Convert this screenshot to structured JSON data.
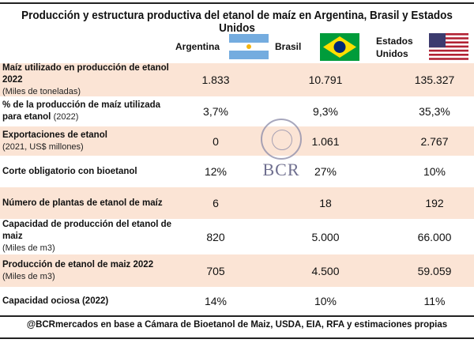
{
  "title": "Producción y estructura productiva del etanol de maíz en Argentina, Brasil y Estados Unidos",
  "columns": [
    "Argentina",
    "Brasil",
    "Estados Unidos"
  ],
  "watermark": "BCR",
  "rows": [
    {
      "label": "Maíz utilizado en producción de etanol 2022",
      "sub": "(Miles de toneladas)",
      "values": [
        "1.833",
        "10.791",
        "135.327"
      ]
    },
    {
      "label": "% de la producción de maíz utilizada para etanol",
      "sub": "(2022)",
      "values": [
        "3,7%",
        "9,3%",
        "35,3%"
      ]
    },
    {
      "label": "Exportaciones de etanol",
      "sub": "(2021, US$ millones)",
      "values": [
        "0",
        "1.061",
        "2.767"
      ]
    },
    {
      "label": "Corte obligatorio con bioetanol",
      "sub": "",
      "values": [
        "12%",
        "27%",
        "10%"
      ]
    },
    {
      "label": "Número de plantas de etanol de maíz",
      "sub": "",
      "values": [
        "6",
        "18",
        "192"
      ]
    },
    {
      "label": "Capacidad de producción del etanol de maiz",
      "sub": "(Miles de m3)",
      "values": [
        "820",
        "5.000",
        "66.000"
      ]
    },
    {
      "label": "Producción de etanol de maiz 2022",
      "sub": "(Miles de m3)",
      "values": [
        "705",
        "4.500",
        "59.059"
      ]
    },
    {
      "label": "Capacidad ociosa (2022)",
      "sub": "",
      "values": [
        "14%",
        "10%",
        "11%"
      ]
    }
  ],
  "footer": "@BCRmercados en base a Cámara de Bioetanol de Maiz, USDA, EIA, RFA y estimaciones propias"
}
